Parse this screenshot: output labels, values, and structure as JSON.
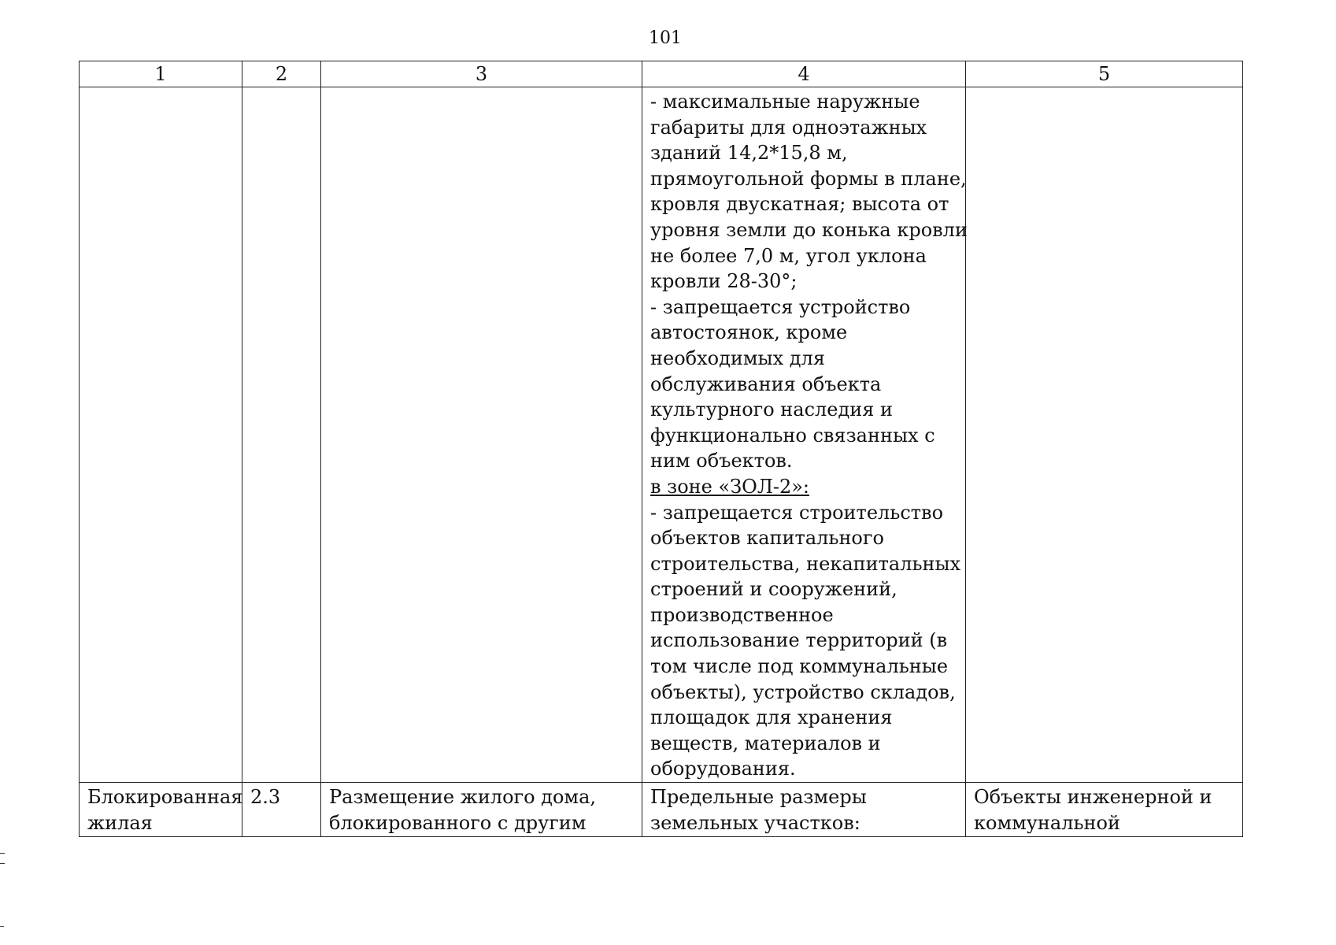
{
  "page_number": "101",
  "table": {
    "headers": [
      "1",
      "2",
      "3",
      "4",
      "5"
    ],
    "continued_row": {
      "col4_lines": [
        "- максимальные наружные",
        "габариты для одноэтажных",
        "зданий 14,2*15,8 м,",
        "прямоугольной формы в плане,",
        "кровля двускатная; высота от",
        "уровня земли до конька кровли",
        "не более 7,0 м, угол уклона",
        "кровли 28-30°;",
        "- запрещается устройство",
        "автостоянок, кроме",
        "необходимых для",
        "обслуживания объекта",
        "культурного наследия и",
        "функционально связанных с",
        "ним объектов."
      ],
      "zone_heading": "в зоне «ЗОЛ-2»:",
      "col4_lines_2": [
        "- запрещается строительство",
        "объектов капитального",
        "строительства, некапитальных",
        "строений и сооружений,",
        "производственное",
        "использование территорий (в",
        "том числе под коммунальные",
        "объекты), устройство складов,",
        "площадок для хранения",
        "веществ, материалов и",
        "оборудования."
      ]
    },
    "row2": {
      "col1": [
        "Блокированная",
        "жилая"
      ],
      "col2": "2.3",
      "col3": [
        "Размещение жилого дома,",
        "блокированного с другим"
      ],
      "col4": [
        "Предельные размеры",
        "земельных участков:"
      ],
      "col5": [
        "Объекты инженерной и",
        "коммунальной"
      ]
    }
  }
}
